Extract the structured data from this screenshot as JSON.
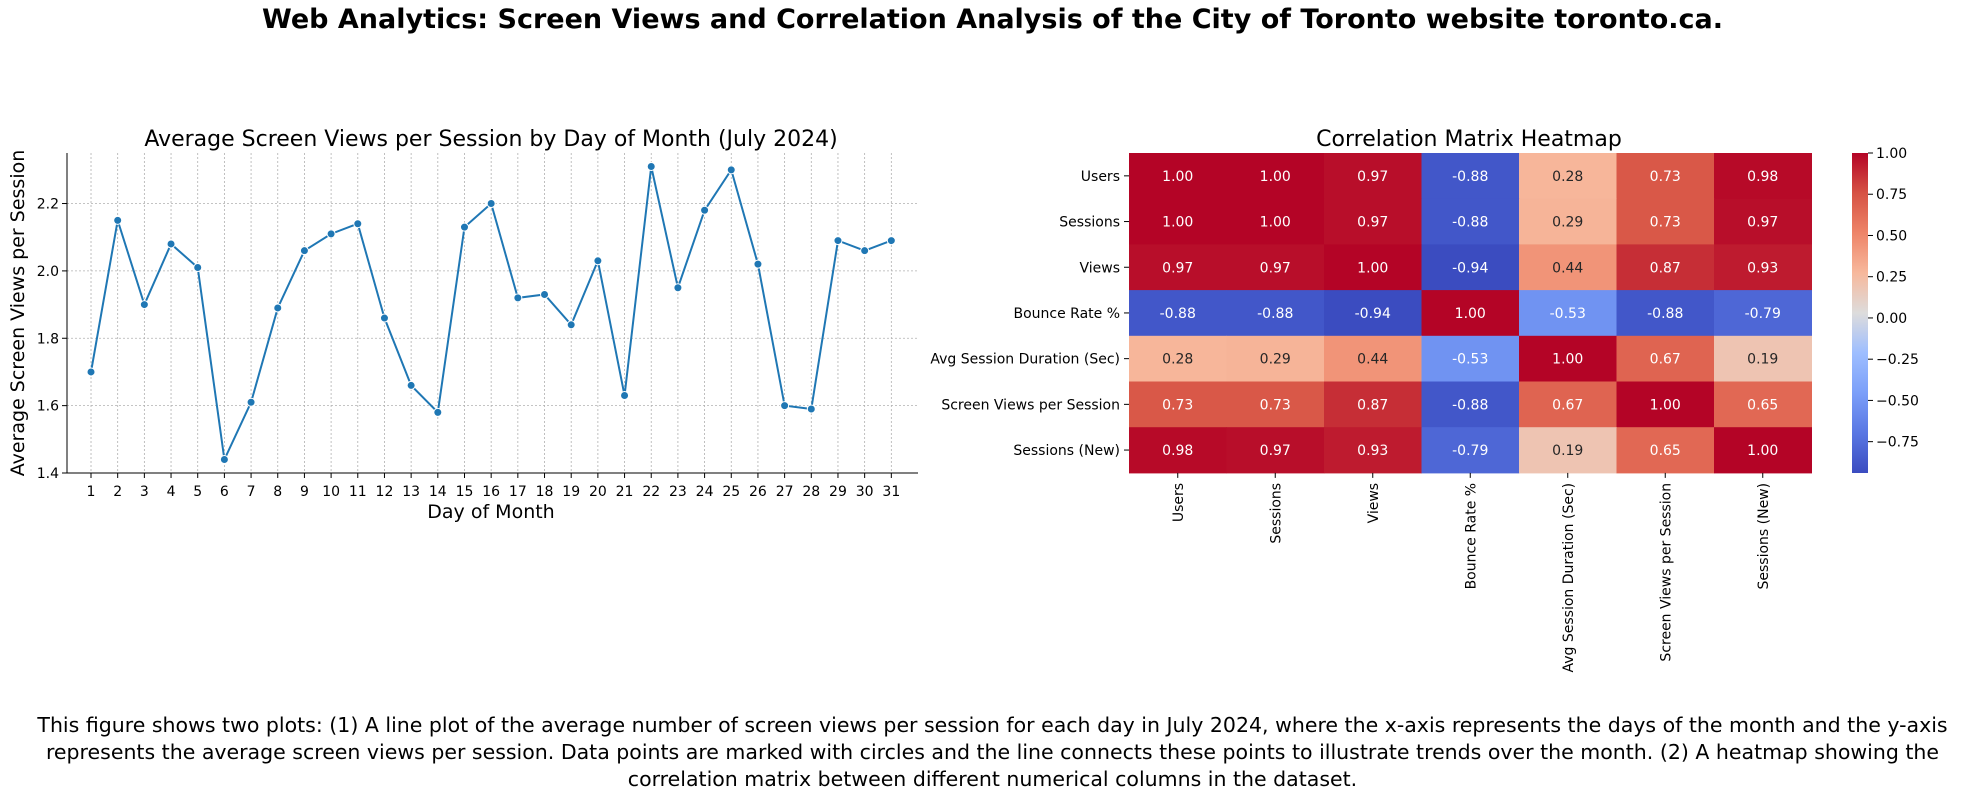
{
  "title": "Web Analytics: Screen Views and Correlation Analysis of the City of Toronto website toronto.ca.",
  "caption": "This figure shows two plots: (1) A line plot of the average number of screen views per session for each day in July 2024, where the x-axis represents the days of the month and the y-axis represents the average screen views per session. Data points are marked with circles and the line connects these points to illustrate trends over the month. (2) A heatmap showing the correlation matrix between different numerical columns in the dataset.",
  "colors": {
    "line": "#1f77b4",
    "grid": "#b0b0b0"
  },
  "chart_data": [
    {
      "type": "line",
      "title": "Average Screen Views per Session by Day of Month (July 2024)",
      "xlabel": "Day of Month",
      "ylabel": "Average Screen Views per Session",
      "x": [
        1,
        2,
        3,
        4,
        5,
        6,
        7,
        8,
        9,
        10,
        11,
        12,
        13,
        14,
        15,
        16,
        17,
        18,
        19,
        20,
        21,
        22,
        23,
        24,
        25,
        26,
        27,
        28,
        29,
        30,
        31
      ],
      "y": [
        1.7,
        2.15,
        1.9,
        2.08,
        2.01,
        1.44,
        1.61,
        1.89,
        2.06,
        2.11,
        2.14,
        1.86,
        1.66,
        1.58,
        2.13,
        2.2,
        1.92,
        1.93,
        1.84,
        2.03,
        1.63,
        2.31,
        1.95,
        2.18,
        2.3,
        2.02,
        1.6,
        1.59,
        2.09,
        2.06,
        2.09
      ],
      "ylim": [
        1.4,
        2.35
      ],
      "yticks": [
        "1.4",
        "1.6",
        "1.8",
        "2.0",
        "2.2"
      ],
      "xticks": [
        "1",
        "2",
        "3",
        "4",
        "5",
        "6",
        "7",
        "8",
        "9",
        "10",
        "11",
        "12",
        "13",
        "14",
        "15",
        "16",
        "17",
        "18",
        "19",
        "20",
        "21",
        "22",
        "23",
        "24",
        "25",
        "26",
        "27",
        "28",
        "29",
        "30",
        "31"
      ],
      "grid": true,
      "marker": "circle"
    },
    {
      "type": "heatmap",
      "title": "Correlation Matrix Heatmap",
      "labels": [
        "Users",
        "Sessions",
        "Views",
        "Bounce Rate %",
        "Avg Session Duration (Sec)",
        "Screen Views per Session",
        "Sessions (New)"
      ],
      "matrix": [
        [
          1.0,
          1.0,
          0.97,
          -0.88,
          0.28,
          0.73,
          0.98
        ],
        [
          1.0,
          1.0,
          0.97,
          -0.88,
          0.29,
          0.73,
          0.97
        ],
        [
          0.97,
          0.97,
          1.0,
          -0.94,
          0.44,
          0.87,
          0.93
        ],
        [
          -0.88,
          -0.88,
          -0.94,
          1.0,
          -0.53,
          -0.88,
          -0.79
        ],
        [
          0.28,
          0.29,
          0.44,
          -0.53,
          1.0,
          0.67,
          0.19
        ],
        [
          0.73,
          0.73,
          0.87,
          -0.88,
          0.67,
          1.0,
          0.65
        ],
        [
          0.98,
          0.97,
          0.93,
          -0.79,
          0.19,
          0.65,
          1.0
        ]
      ],
      "colormap": "coolwarm",
      "vmin": -0.94,
      "vmax": 1.0,
      "colorbar_ticks": [
        "1.00",
        "0.75",
        "0.50",
        "0.25",
        "0.00",
        "−0.25",
        "−0.50",
        "−0.75"
      ],
      "colorbar_values": [
        1.0,
        0.75,
        0.5,
        0.25,
        0.0,
        -0.25,
        -0.5,
        -0.75
      ]
    }
  ]
}
